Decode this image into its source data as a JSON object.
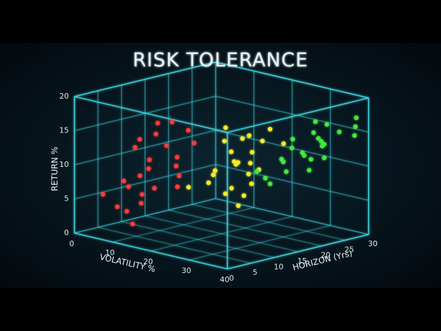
{
  "chart_data": {
    "type": "scatter3d",
    "title": "RISK TOLERANCE",
    "x_label": "VOLATILITY %",
    "y_label": "HORIZON (Yrs)",
    "z_label": "RETURN %",
    "xlim": [
      0,
      40
    ],
    "xticks": [
      0,
      10,
      20,
      30,
      40
    ],
    "ylim": [
      0,
      30
    ],
    "yticks": [
      0,
      5,
      10,
      15,
      20,
      25,
      30
    ],
    "zlim": [
      0,
      20
    ],
    "zticks": [
      0,
      5,
      10,
      15,
      20
    ],
    "grid": true,
    "grid_color": "#3fd6df",
    "series": [
      {
        "color": "#ff3a3a",
        "x": [
          5,
          8,
          10,
          12,
          6,
          14,
          9,
          11,
          15,
          18,
          7,
          13,
          16,
          20,
          10,
          12,
          17,
          8,
          19,
          14,
          22,
          11,
          15,
          6
        ],
        "y": [
          2,
          4,
          1,
          6,
          8,
          3,
          10,
          5,
          2,
          7,
          12,
          9,
          4,
          6,
          3,
          11,
          8,
          5,
          10,
          1,
          4,
          7,
          12,
          9
        ],
        "z": [
          6,
          8,
          5,
          10,
          12,
          7,
          14,
          9,
          6,
          11,
          15,
          13,
          8,
          10,
          4,
          16,
          12,
          7,
          14,
          3,
          9,
          11,
          15,
          13
        ]
      },
      {
        "color": "#f4ec2c",
        "x": [
          20,
          24,
          28,
          22,
          30,
          26,
          32,
          25,
          21,
          29,
          34,
          27,
          23,
          31,
          33,
          26,
          28,
          24,
          30,
          35,
          22,
          27,
          32,
          25
        ],
        "y": [
          8,
          10,
          12,
          14,
          9,
          16,
          11,
          13,
          15,
          18,
          10,
          12,
          17,
          14,
          8,
          11,
          15,
          9,
          13,
          16,
          12,
          18,
          10,
          14
        ],
        "z": [
          8,
          10,
          12,
          14,
          9,
          15,
          11,
          13,
          6,
          16,
          10,
          12,
          14,
          11,
          7,
          17,
          13,
          9,
          12,
          15,
          10,
          14,
          8,
          11
        ]
      },
      {
        "color": "#42ea3c",
        "x": [
          28,
          32,
          35,
          30,
          38,
          33,
          36,
          31,
          29,
          37,
          34,
          39,
          30,
          33,
          36,
          32,
          35,
          38,
          31,
          34,
          37,
          29,
          40,
          33
        ],
        "y": [
          16,
          18,
          20,
          22,
          19,
          24,
          21,
          26,
          17,
          23,
          25,
          28,
          20,
          22,
          27,
          19,
          24,
          29,
          21,
          26,
          23,
          18,
          27,
          25
        ],
        "z": [
          10,
          12,
          13,
          14,
          11,
          15,
          12,
          16,
          9,
          14,
          13,
          16,
          11,
          12,
          15,
          10,
          14,
          17,
          13,
          16,
          12,
          8,
          15,
          14
        ]
      }
    ]
  }
}
